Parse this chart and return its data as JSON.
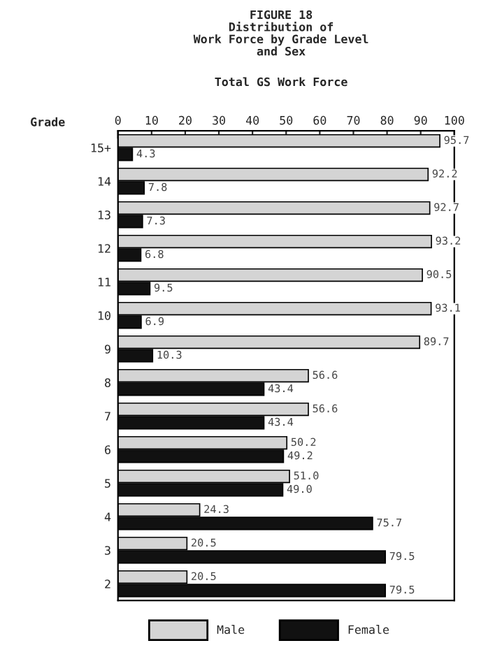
{
  "chart_data": {
    "type": "bar",
    "orientation": "horizontal",
    "title": "FIGURE 18\nDistribution of\nWork Force by Grade Level\nand Sex",
    "subtitle": "Total GS Work Force",
    "ylabel": "Grade",
    "categories": [
      "15+",
      "14",
      "13",
      "12",
      "11",
      "10",
      "9",
      "8",
      "7",
      "6",
      "5",
      "4",
      "3",
      "2"
    ],
    "series": [
      {
        "name": "Male",
        "color": "#d4d4d4",
        "values": [
          95.7,
          92.2,
          92.7,
          93.2,
          90.5,
          93.1,
          89.7,
          56.6,
          56.6,
          50.2,
          51.0,
          24.3,
          20.5,
          20.5
        ],
        "value_labels": [
          "95.7",
          "92.2",
          "92.7",
          "93.2",
          "90.5",
          "93.1",
          "89.7",
          "56.6",
          "56.6",
          "50.2",
          "51.0",
          "24.3",
          "20.5",
          "20.5"
        ]
      },
      {
        "name": "Female",
        "color": "#111111",
        "values": [
          4.3,
          7.8,
          7.3,
          6.8,
          9.5,
          6.9,
          10.3,
          43.4,
          43.4,
          49.2,
          49.0,
          75.7,
          79.5,
          79.5
        ],
        "value_labels": [
          "4.3",
          "7.8",
          "7.3",
          "6.8",
          "9.5",
          "6.9",
          "10.3",
          "43.4",
          "43.4",
          "49.2",
          "49.0",
          "75.7",
          "79.5",
          "79.5"
        ]
      }
    ],
    "xlim": [
      0,
      100
    ],
    "xticks": [
      0,
      10,
      20,
      30,
      40,
      50,
      60,
      70,
      80,
      90,
      100
    ],
    "legend": "bottom"
  }
}
